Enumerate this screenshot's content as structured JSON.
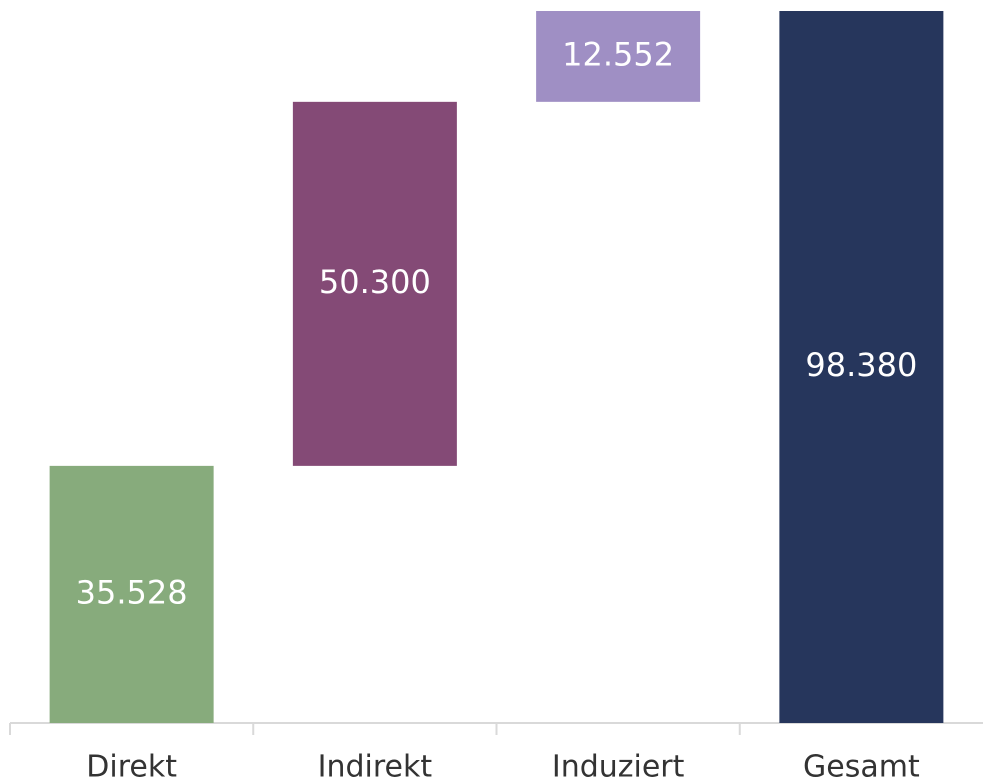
{
  "chart_data": {
    "type": "waterfall",
    "categories": [
      "Direkt",
      "Indirekt",
      "Induziert",
      "Gesamt"
    ],
    "values": [
      35528,
      50300,
      12552,
      98380
    ],
    "value_labels": [
      "35.528",
      "50.300",
      "12.552",
      "98.380"
    ],
    "measure": [
      "relative",
      "relative",
      "relative",
      "total"
    ],
    "colors": [
      "#87ab7c",
      "#844a76",
      "#9f8fc4",
      "#26365c"
    ],
    "ylim": [
      0,
      98380
    ]
  }
}
